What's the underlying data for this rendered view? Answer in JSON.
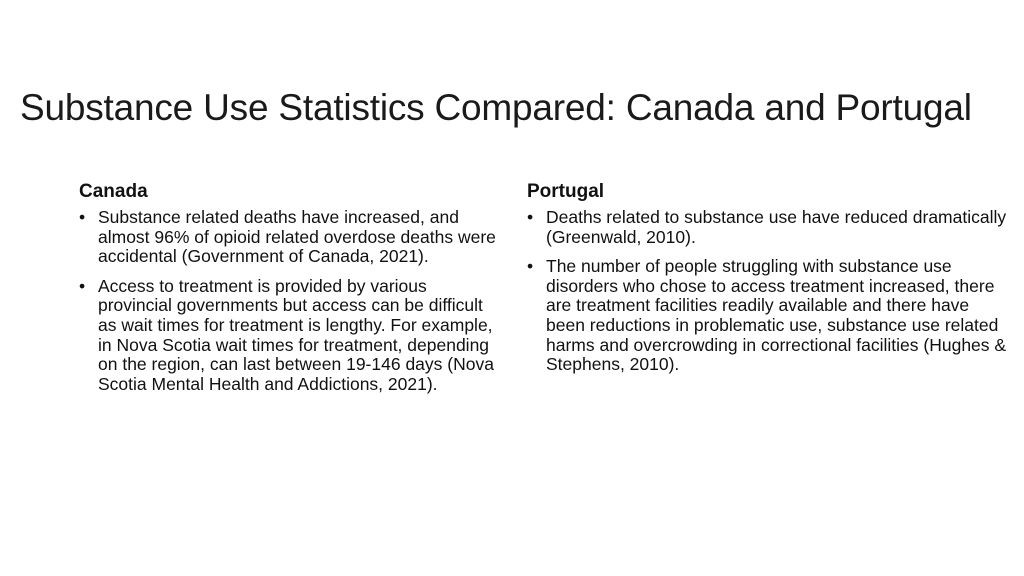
{
  "slide": {
    "title": "Substance Use Statistics Compared: Canada and Portugal",
    "columns": [
      {
        "heading": "Canada",
        "bullets": [
          "Substance related deaths have increased, and almost 96% of opioid related overdose deaths were accidental (Government of Canada, 2021).",
          "Access to treatment is provided by various provincial governments but access can be difficult as wait times for treatment is lengthy.  For example, in Nova Scotia wait times for treatment, depending on the region, can last between 19-146 days (Nova Scotia Mental Health and Addictions, 2021)."
        ]
      },
      {
        "heading": "Portugal",
        "bullets": [
          "Deaths related to substance use have reduced dramatically (Greenwald, 2010).",
          "The number of people struggling with substance use disorders who chose to access treatment increased, there are treatment facilities readily available and there have been reductions in problematic use, substance use related harms and overcrowding in correctional facilities (Hughes & Stephens, 2010)."
        ]
      }
    ],
    "bullet_glyph": "•"
  }
}
